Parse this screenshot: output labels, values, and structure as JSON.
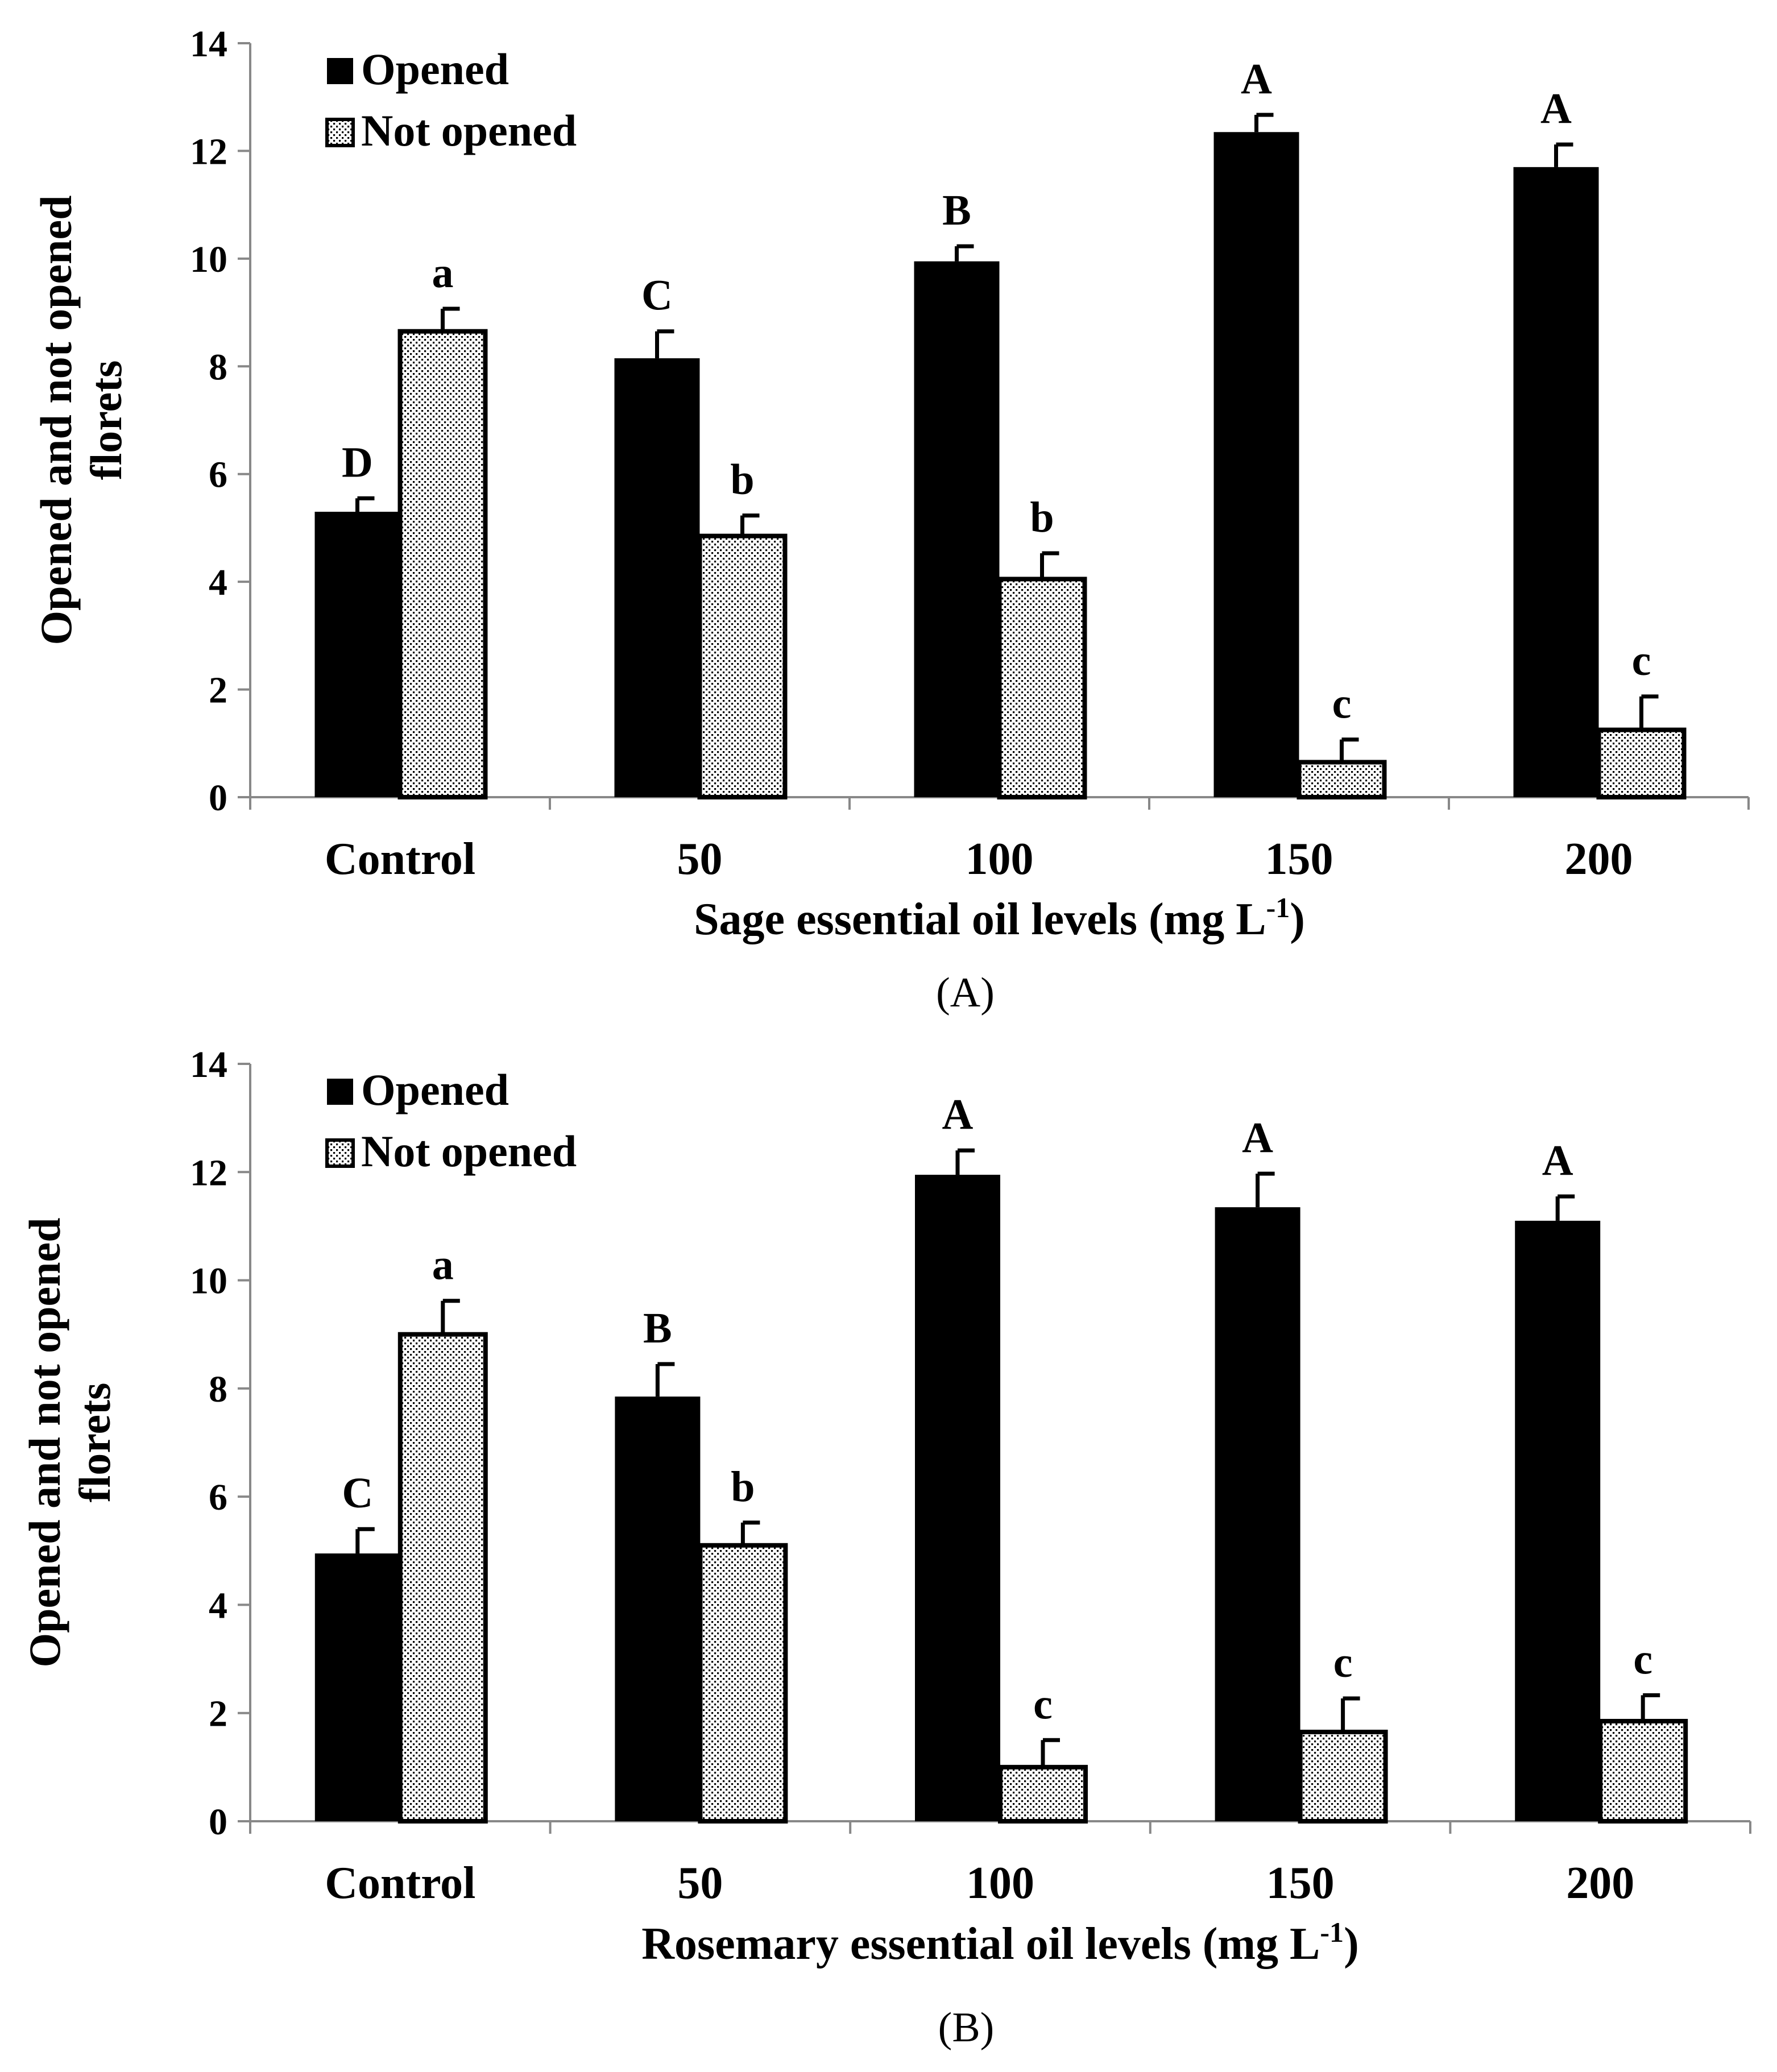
{
  "chart_data": [
    {
      "type": "bar",
      "caption": "(A)",
      "categories": [
        "Control",
        "50",
        "100",
        "150",
        "200"
      ],
      "xlabel": "Sage essential oil levels (mg L",
      "xlabel_sup": "-1",
      "xlabel_close": ")",
      "ylabel_line1": "Opened and  not opened",
      "ylabel_line2": "florets",
      "ylim": [
        0,
        14
      ],
      "yticks": [
        0,
        2,
        4,
        6,
        8,
        10,
        12,
        14
      ],
      "grid": false,
      "legend_position": "top-left",
      "series": [
        {
          "name": "Opened",
          "color": "#000000",
          "pattern": "solid",
          "values": [
            5.3,
            8.15,
            9.95,
            12.35,
            11.7
          ],
          "errors": [
            0.25,
            0.5,
            0.28,
            0.32,
            0.42
          ],
          "letters": [
            "D",
            "C",
            "B",
            "A",
            "A"
          ]
        },
        {
          "name": "Not opened",
          "color": "#000000",
          "pattern": "dotted",
          "values": [
            8.65,
            4.85,
            4.05,
            0.65,
            1.25
          ],
          "errors": [
            0.42,
            0.38,
            0.48,
            0.42,
            0.62
          ],
          "letters": [
            "a",
            "b",
            "b",
            "c",
            "c"
          ]
        }
      ]
    },
    {
      "type": "bar",
      "caption": "(B)",
      "categories": [
        "Control",
        "50",
        "100",
        "150",
        "200"
      ],
      "xlabel": "Rosemary essential oil levels (mg L",
      "xlabel_sup": "-1",
      "xlabel_close": ")",
      "ylabel_line1": "Opened and  not opened",
      "ylabel_line2": "florets",
      "ylim": [
        0,
        14
      ],
      "yticks": [
        0,
        2,
        4,
        6,
        8,
        10,
        12,
        14
      ],
      "grid": false,
      "legend_position": "top-left",
      "series": [
        {
          "name": "Opened",
          "color": "#000000",
          "pattern": "solid",
          "values": [
            4.95,
            7.85,
            11.95,
            11.35,
            11.1
          ],
          "errors": [
            0.45,
            0.6,
            0.45,
            0.62,
            0.45
          ],
          "letters": [
            "C",
            "B",
            "A",
            "A",
            "A"
          ]
        },
        {
          "name": "Not opened",
          "color": "#000000",
          "pattern": "dotted",
          "values": [
            9.0,
            5.1,
            1.0,
            1.65,
            1.85
          ],
          "errors": [
            0.62,
            0.42,
            0.5,
            0.62,
            0.48
          ],
          "letters": [
            "a",
            "b",
            "c",
            "c",
            "c"
          ]
        }
      ]
    }
  ]
}
